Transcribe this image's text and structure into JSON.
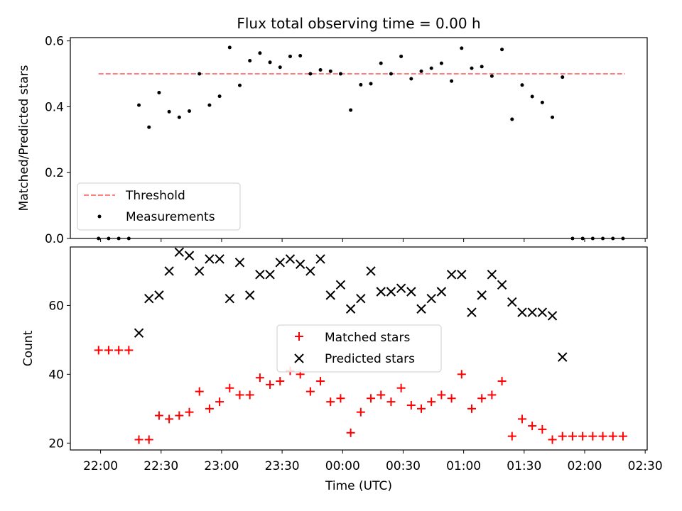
{
  "title": "Flux total observing time = 0.00 h",
  "chart_data": [
    {
      "type": "scatter",
      "panel": "top",
      "ylabel": "Matched/Predicted stars",
      "ylim": [
        0.0,
        0.61
      ],
      "yticks": [
        0.0,
        0.2,
        0.4,
        0.6
      ],
      "ytick_labels": [
        "0.0",
        "0.2",
        "0.4",
        "0.6"
      ],
      "legend_placement": "lower-left",
      "threshold": {
        "label": "Threshold",
        "value": 0.5,
        "x_start": "21:59",
        "x_end": "02:20",
        "color": "#ff7f7f"
      },
      "series": [
        {
          "name": "Measurements",
          "color": "#000000",
          "x": [
            "21:59",
            "22:04",
            "22:09",
            "22:14",
            "22:19",
            "22:24",
            "22:29",
            "22:34",
            "22:39",
            "22:44",
            "22:49",
            "22:54",
            "22:59",
            "23:04",
            "23:09",
            "23:14",
            "23:19",
            "23:24",
            "23:29",
            "23:34",
            "23:39",
            "23:44",
            "23:49",
            "23:54",
            "23:59",
            "00:04",
            "00:09",
            "00:14",
            "00:19",
            "00:24",
            "00:29",
            "00:34",
            "00:39",
            "00:44",
            "00:49",
            "00:54",
            "00:59",
            "01:04",
            "01:09",
            "01:14",
            "01:19",
            "01:24",
            "01:29",
            "01:34",
            "01:39",
            "01:44",
            "01:49",
            "01:54",
            "01:59",
            "02:04",
            "02:09",
            "02:14",
            "02:19"
          ],
          "y": [
            0.0,
            0.0,
            0.0,
            0.0,
            0.405,
            0.338,
            0.443,
            0.385,
            0.368,
            0.387,
            0.5,
            0.405,
            0.432,
            0.58,
            0.465,
            0.54,
            0.563,
            0.535,
            0.52,
            0.553,
            0.555,
            0.5,
            0.512,
            0.508,
            0.5,
            0.39,
            0.467,
            0.47,
            0.532,
            0.5,
            0.553,
            0.485,
            0.508,
            0.517,
            0.532,
            0.478,
            0.578,
            0.517,
            0.522,
            0.493,
            0.574,
            0.362,
            0.466,
            0.431,
            0.413,
            0.368,
            0.49,
            0.0,
            0.0,
            0.0,
            0.0,
            0.0,
            0.0
          ]
        }
      ]
    },
    {
      "type": "scatter",
      "panel": "bottom",
      "xlabel": "Time (UTC)",
      "ylabel": "Count",
      "ylim": [
        18,
        77
      ],
      "yticks": [
        20,
        40,
        60
      ],
      "ytick_labels": [
        "20",
        "40",
        "60"
      ],
      "xlim": [
        "21:45",
        "02:31"
      ],
      "xticks": [
        "22:00",
        "22:30",
        "23:00",
        "23:30",
        "00:00",
        "00:30",
        "01:00",
        "01:30",
        "02:00",
        "02:30"
      ],
      "legend_placement": "center",
      "series": [
        {
          "name": "Matched stars",
          "marker": "+",
          "color": "#ff0000",
          "x": [
            "21:59",
            "22:04",
            "22:09",
            "22:14",
            "22:19",
            "22:24",
            "22:29",
            "22:34",
            "22:39",
            "22:44",
            "22:49",
            "22:54",
            "22:59",
            "23:04",
            "23:09",
            "23:14",
            "23:19",
            "23:24",
            "23:29",
            "23:34",
            "23:39",
            "23:44",
            "23:49",
            "23:54",
            "23:59",
            "00:04",
            "00:09",
            "00:14",
            "00:19",
            "00:24",
            "00:29",
            "00:34",
            "00:39",
            "00:44",
            "00:49",
            "00:54",
            "00:59",
            "01:04",
            "01:09",
            "01:14",
            "01:19",
            "01:24",
            "01:29",
            "01:34",
            "01:39",
            "01:44",
            "01:49",
            "01:54",
            "01:59",
            "02:04",
            "02:09",
            "02:14",
            "02:19"
          ],
          "y": [
            47,
            47,
            47,
            47,
            21,
            21,
            28,
            27,
            28,
            29,
            35,
            30,
            32,
            36,
            34,
            34,
            39,
            37,
            38,
            41,
            40,
            35,
            38,
            32,
            33,
            23,
            29,
            33,
            34,
            32,
            36,
            31,
            30,
            32,
            34,
            33,
            40,
            30,
            33,
            34,
            38,
            22,
            27,
            25,
            24,
            21,
            22,
            22,
            22,
            22,
            22,
            22,
            22
          ]
        },
        {
          "name": "Predicted stars",
          "marker": "x",
          "color": "#000000",
          "x": [
            "22:19",
            "22:24",
            "22:29",
            "22:34",
            "22:39",
            "22:44",
            "22:49",
            "22:54",
            "22:59",
            "23:04",
            "23:09",
            "23:14",
            "23:19",
            "23:24",
            "23:29",
            "23:34",
            "23:39",
            "23:44",
            "23:49",
            "23:54",
            "23:59",
            "00:04",
            "00:09",
            "00:14",
            "00:19",
            "00:24",
            "00:29",
            "00:34",
            "00:39",
            "00:44",
            "00:49",
            "00:54",
            "00:59",
            "01:04",
            "01:09",
            "01:14",
            "01:19",
            "01:24",
            "01:29",
            "01:34",
            "01:39",
            "01:44",
            "01:49"
          ],
          "y": [
            52,
            62,
            63,
            70,
            75.5,
            74.5,
            70,
            73.5,
            73.5,
            62,
            72.5,
            63,
            69,
            69,
            72.5,
            73.5,
            72,
            70,
            73.5,
            63,
            66,
            59,
            62,
            70,
            64,
            64,
            65,
            64,
            59,
            62,
            64,
            69,
            69,
            58,
            63,
            69,
            66,
            61,
            58,
            58,
            58,
            57,
            45
          ]
        }
      ]
    }
  ]
}
